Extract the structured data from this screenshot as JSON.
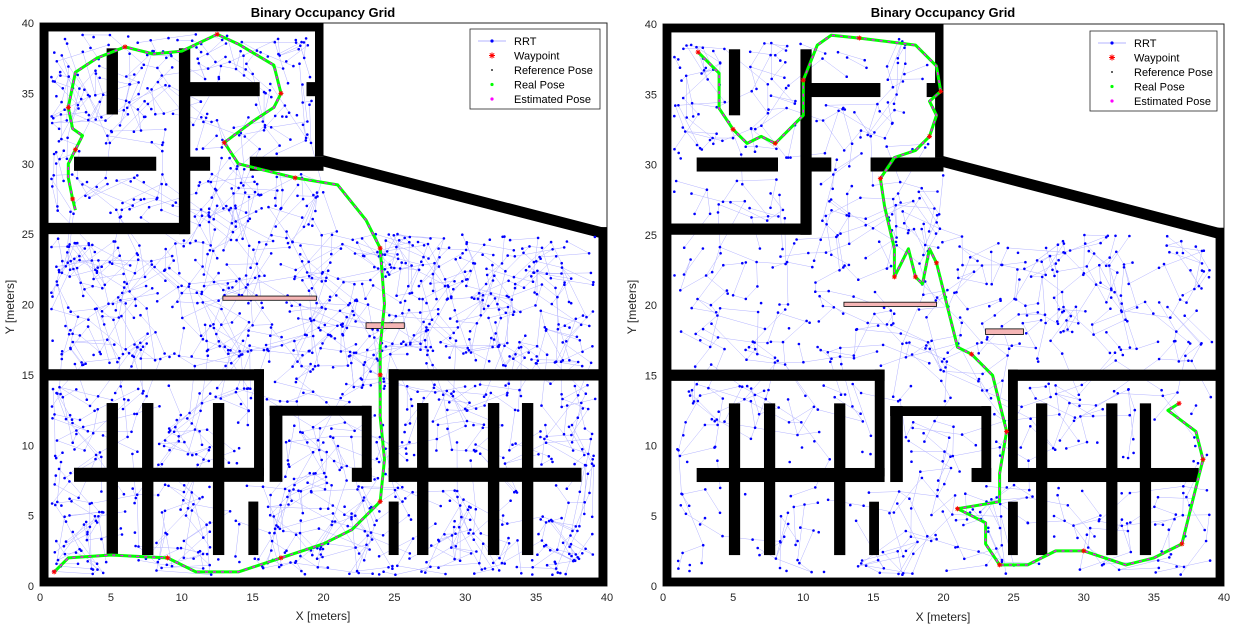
{
  "colors": {
    "rrt": "#0000ff",
    "rrt_edge": "#b3b3ff",
    "waypoint": "#ff0000",
    "reference": "#333333",
    "real": "#00ff00",
    "estimated": "#ff00ff",
    "obstacle": "#000000",
    "dynamic": "#f5b5b5"
  },
  "chart_data": [
    {
      "type": "scatter",
      "title": "Binary Occupancy Grid",
      "xlabel": "X [meters]",
      "ylabel": "Y [meters]",
      "xlim": [
        0,
        40
      ],
      "ylim": [
        0,
        40
      ],
      "xticks": [
        "0",
        "5",
        "10",
        "15",
        "20",
        "25",
        "30",
        "35",
        "40"
      ],
      "yticks": [
        "0",
        "5",
        "10",
        "15",
        "20",
        "25",
        "30",
        "35",
        "40"
      ],
      "grid": false,
      "legend_position": "top-right",
      "legend": [
        "RRT",
        "Waypoint",
        "Reference Pose",
        "Real Pose",
        "Estimated Pose"
      ],
      "rrt_node_count": 1700,
      "path": [
        [
          1,
          1
        ],
        [
          2,
          2
        ],
        [
          5,
          2.2
        ],
        [
          9,
          2
        ],
        [
          11,
          1
        ],
        [
          14,
          1
        ],
        [
          17,
          2
        ],
        [
          20,
          3
        ],
        [
          22,
          4
        ],
        [
          24,
          6
        ],
        [
          24.3,
          9
        ],
        [
          24,
          12
        ],
        [
          24,
          15
        ],
        [
          24,
          17
        ],
        [
          24.3,
          20
        ],
        [
          24,
          24
        ],
        [
          23,
          26
        ],
        [
          21,
          28.5
        ],
        [
          18,
          29
        ],
        [
          16,
          29.5
        ],
        [
          14,
          30
        ],
        [
          13,
          31.5
        ],
        [
          15,
          33
        ],
        [
          16.5,
          34
        ],
        [
          17,
          35
        ],
        [
          16.5,
          37
        ],
        [
          14,
          38.5
        ],
        [
          12.5,
          39.2
        ],
        [
          10,
          38
        ],
        [
          8,
          37.8
        ],
        [
          6,
          38.3
        ],
        [
          4,
          37.5
        ],
        [
          2.5,
          36.5
        ],
        [
          2,
          34
        ],
        [
          2.3,
          32.5
        ],
        [
          3,
          32
        ],
        [
          2.5,
          31
        ],
        [
          2,
          30
        ],
        [
          2,
          29
        ],
        [
          2.3,
          27.5
        ],
        [
          2.5,
          26.7
        ]
      ],
      "dynamic_obstacles": [
        [
          12.9,
          20.3,
          19.5,
          20.6
        ],
        [
          23,
          18.3,
          25.7,
          18.7
        ]
      ]
    },
    {
      "type": "scatter",
      "title": "Binary Occupancy Grid",
      "xlabel": "X [meters]",
      "ylabel": "Y [meters]",
      "xlim": [
        0,
        40
      ],
      "ylim": [
        0,
        40
      ],
      "xticks": [
        "0",
        "5",
        "10",
        "15",
        "20",
        "25",
        "30",
        "35",
        "40"
      ],
      "yticks": [
        "0",
        "5",
        "10",
        "15",
        "20",
        "25",
        "30",
        "35",
        "40"
      ],
      "grid": false,
      "legend_position": "top-right",
      "legend": [
        "RRT",
        "Waypoint",
        "Reference Pose",
        "Real Pose",
        "Estimated Pose"
      ],
      "rrt_node_count": 900,
      "path": [
        [
          36.8,
          13
        ],
        [
          36,
          12.5
        ],
        [
          38,
          11
        ],
        [
          38.5,
          9
        ],
        [
          38,
          7
        ],
        [
          37.5,
          5
        ],
        [
          37,
          3
        ],
        [
          35,
          2
        ],
        [
          33,
          1.5
        ],
        [
          30,
          2.5
        ],
        [
          28,
          2.5
        ],
        [
          26,
          1.5
        ],
        [
          24,
          1.5
        ],
        [
          23,
          3
        ],
        [
          23,
          4.5
        ],
        [
          21,
          5.5
        ],
        [
          24,
          6
        ],
        [
          24,
          8
        ],
        [
          24.5,
          11
        ],
        [
          24,
          13
        ],
        [
          23.5,
          15
        ],
        [
          22,
          16.5
        ],
        [
          21,
          17
        ],
        [
          20,
          21
        ],
        [
          19.5,
          23
        ],
        [
          19,
          24
        ],
        [
          18.5,
          21.5
        ],
        [
          18,
          22
        ],
        [
          17.5,
          24
        ],
        [
          17,
          23
        ],
        [
          16.5,
          22
        ],
        [
          16.5,
          24
        ],
        [
          15.8,
          27
        ],
        [
          15.5,
          29
        ],
        [
          16.5,
          30.5
        ],
        [
          18,
          31
        ],
        [
          19,
          32
        ],
        [
          19.5,
          33.5
        ],
        [
          19,
          34.5
        ],
        [
          19.8,
          35.2
        ],
        [
          19.5,
          37
        ],
        [
          18,
          38.5
        ],
        [
          14,
          39
        ],
        [
          12,
          39.2
        ],
        [
          11,
          38.5
        ],
        [
          10,
          36
        ],
        [
          10,
          33.5
        ],
        [
          9,
          32.5
        ],
        [
          8,
          31.5
        ],
        [
          7,
          32
        ],
        [
          6,
          31.5
        ],
        [
          5,
          32.5
        ],
        [
          4,
          34
        ],
        [
          4,
          36.5
        ],
        [
          2.5,
          38
        ]
      ],
      "dynamic_obstacles": [
        [
          12.9,
          19.9,
          19.5,
          20.2
        ],
        [
          23,
          17.9,
          25.7,
          18.3
        ]
      ]
    }
  ]
}
